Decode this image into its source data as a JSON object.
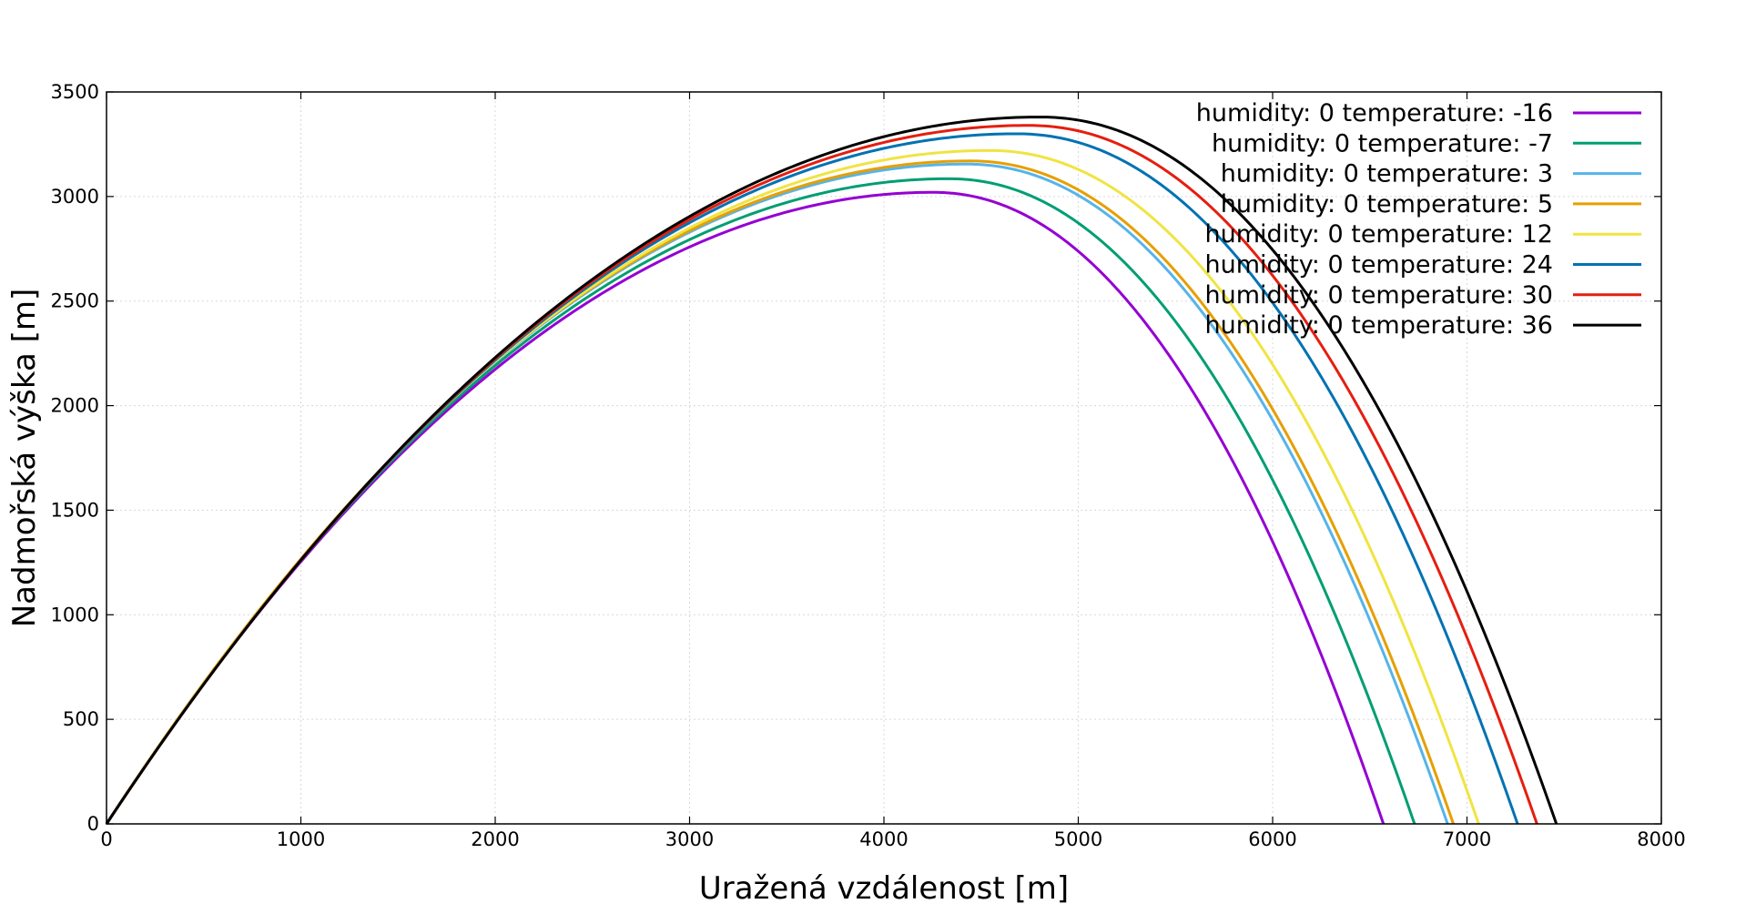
{
  "chart_data": {
    "type": "line",
    "xlabel": "Uražená vzdálenost [m]",
    "ylabel": "Nadmořská výška [m]",
    "xlim": [
      0,
      8000
    ],
    "ylim": [
      0,
      3500
    ],
    "xticks": [
      0,
      1000,
      2000,
      3000,
      4000,
      5000,
      6000,
      7000,
      8000
    ],
    "yticks": [
      0,
      500,
      1000,
      1500,
      2000,
      2500,
      3000,
      3500
    ],
    "grid": true,
    "legend_position": "top-right",
    "series": [
      {
        "name": "humidity: 0 temperature: -16",
        "color": "#9400d3",
        "apex": [
          4250,
          3020
        ],
        "range": 6570
      },
      {
        "name": "humidity: 0 temperature: -7",
        "color": "#009e73",
        "apex": [
          4330,
          3085
        ],
        "range": 6730
      },
      {
        "name": "humidity: 0 temperature: 3",
        "color": "#56b4e9",
        "apex": [
          4420,
          3155
        ],
        "range": 6900
      },
      {
        "name": "humidity: 0 temperature: 5",
        "color": "#e69f00",
        "apex": [
          4440,
          3170
        ],
        "range": 6930
      },
      {
        "name": "humidity: 0 temperature: 12",
        "color": "#f0e442",
        "apex": [
          4540,
          3220
        ],
        "range": 7060
      },
      {
        "name": "humidity: 0 temperature: 24",
        "color": "#0072b2",
        "apex": [
          4680,
          3300
        ],
        "range": 7260
      },
      {
        "name": "humidity: 0 temperature: 30",
        "color": "#e51e10",
        "apex": [
          4740,
          3340
        ],
        "range": 7360
      },
      {
        "name": "humidity: 0 temperature: 36",
        "color": "#000000",
        "apex": [
          4800,
          3380
        ],
        "range": 7460
      }
    ]
  }
}
